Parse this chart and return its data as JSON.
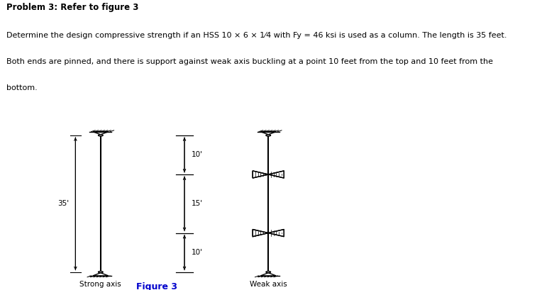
{
  "title": "Problem 3: Refer to figure 3",
  "desc1": "Determine the design compressive strength if an HSS 10 × 6 × 1⁄4 with Fy = 46 ksi is used as a column. The length is 35 feet.",
  "desc2": "Both ends are pinned, and there is support against weak axis buckling at a point 10 feet from the top and 10 feet from the",
  "desc3": "bottom.",
  "figure_caption": "Figure 3",
  "strong_axis_label": "Strong axis",
  "weak_axis_label": "Weak axis",
  "label_35": "35'",
  "label_10_top": "10'",
  "label_15_mid": "15'",
  "label_10_bot": "10'",
  "bg_color": "#ffffff",
  "fig_caption_color": "#0000cc"
}
